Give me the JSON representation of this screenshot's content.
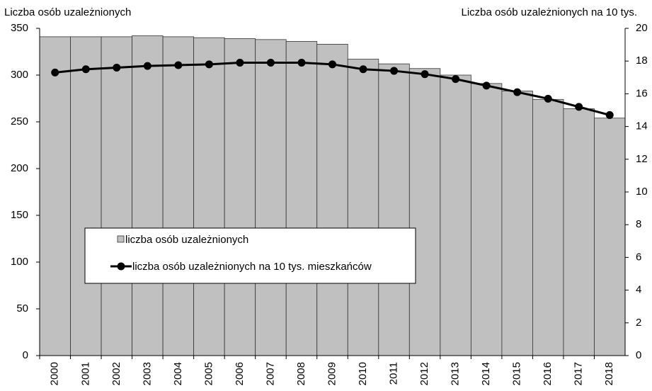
{
  "chart_data": {
    "type": "bar_line",
    "y_label": "Liczba osób uzależnionych",
    "y2_label": "Liczba osób uzależnionych na 10 tys.",
    "categories": [
      "2000",
      "2001",
      "2002",
      "2003",
      "2004",
      "2005",
      "2006",
      "2007",
      "2008",
      "2009",
      "2010",
      "2011",
      "2012",
      "2013",
      "2014",
      "2015",
      "2016",
      "2017",
      "2018"
    ],
    "series": [
      {
        "name": "liczba osób uzależnionych",
        "type": "bar",
        "color": "#c0c0c0",
        "values": [
          341,
          341,
          341,
          342,
          341,
          340,
          339,
          338,
          336,
          333,
          317,
          312,
          307,
          300,
          291,
          283,
          274,
          264,
          254
        ]
      },
      {
        "name": "liczba osób uzależnionych na 10 tys. mieszkańców",
        "type": "line",
        "axis": "y2",
        "color": "#000000",
        "values": [
          17.3,
          17.5,
          17.6,
          17.7,
          17.75,
          17.8,
          17.9,
          17.9,
          17.9,
          17.8,
          17.5,
          17.4,
          17.2,
          16.9,
          16.5,
          16.1,
          15.7,
          15.2,
          14.7
        ]
      }
    ],
    "ylim": [
      0,
      350
    ],
    "yticks": [
      0,
      50,
      100,
      150,
      200,
      250,
      300,
      350
    ],
    "y2lim": [
      0,
      20
    ],
    "y2ticks": [
      0,
      2,
      4,
      6,
      8,
      10,
      12,
      14,
      16,
      18,
      20
    ],
    "legend": "center-left"
  }
}
